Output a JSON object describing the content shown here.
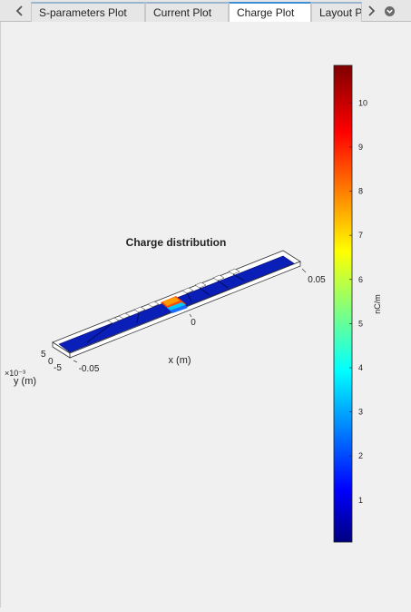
{
  "tabs": [
    {
      "label": "S-parameters Plot",
      "active": false
    },
    {
      "label": "Current Plot",
      "active": false
    },
    {
      "label": "Charge Plot",
      "active": true
    },
    {
      "label": "Layout P",
      "active": false
    }
  ],
  "icons": {
    "scroll_left": "chevron-left-icon",
    "scroll_right": "chevron-right-icon",
    "tab_menu": "chevron-down-circle-icon"
  },
  "plot": {
    "title": "Charge distribution",
    "x_axis": {
      "label": "x (m)",
      "ticks": [
        "-0.05",
        "0",
        "0.05"
      ]
    },
    "y_axis": {
      "label": "y (m)",
      "ticks": [
        "-5",
        "0",
        "5"
      ],
      "multiplier": "×10⁻³"
    },
    "colorbar": {
      "label": "nC/m",
      "ticks": [
        "1",
        "2",
        "3",
        "4",
        "5",
        "6",
        "7",
        "8",
        "9",
        "10"
      ],
      "range": [
        0.05,
        10.85
      ],
      "colormap": "jet"
    }
  }
}
